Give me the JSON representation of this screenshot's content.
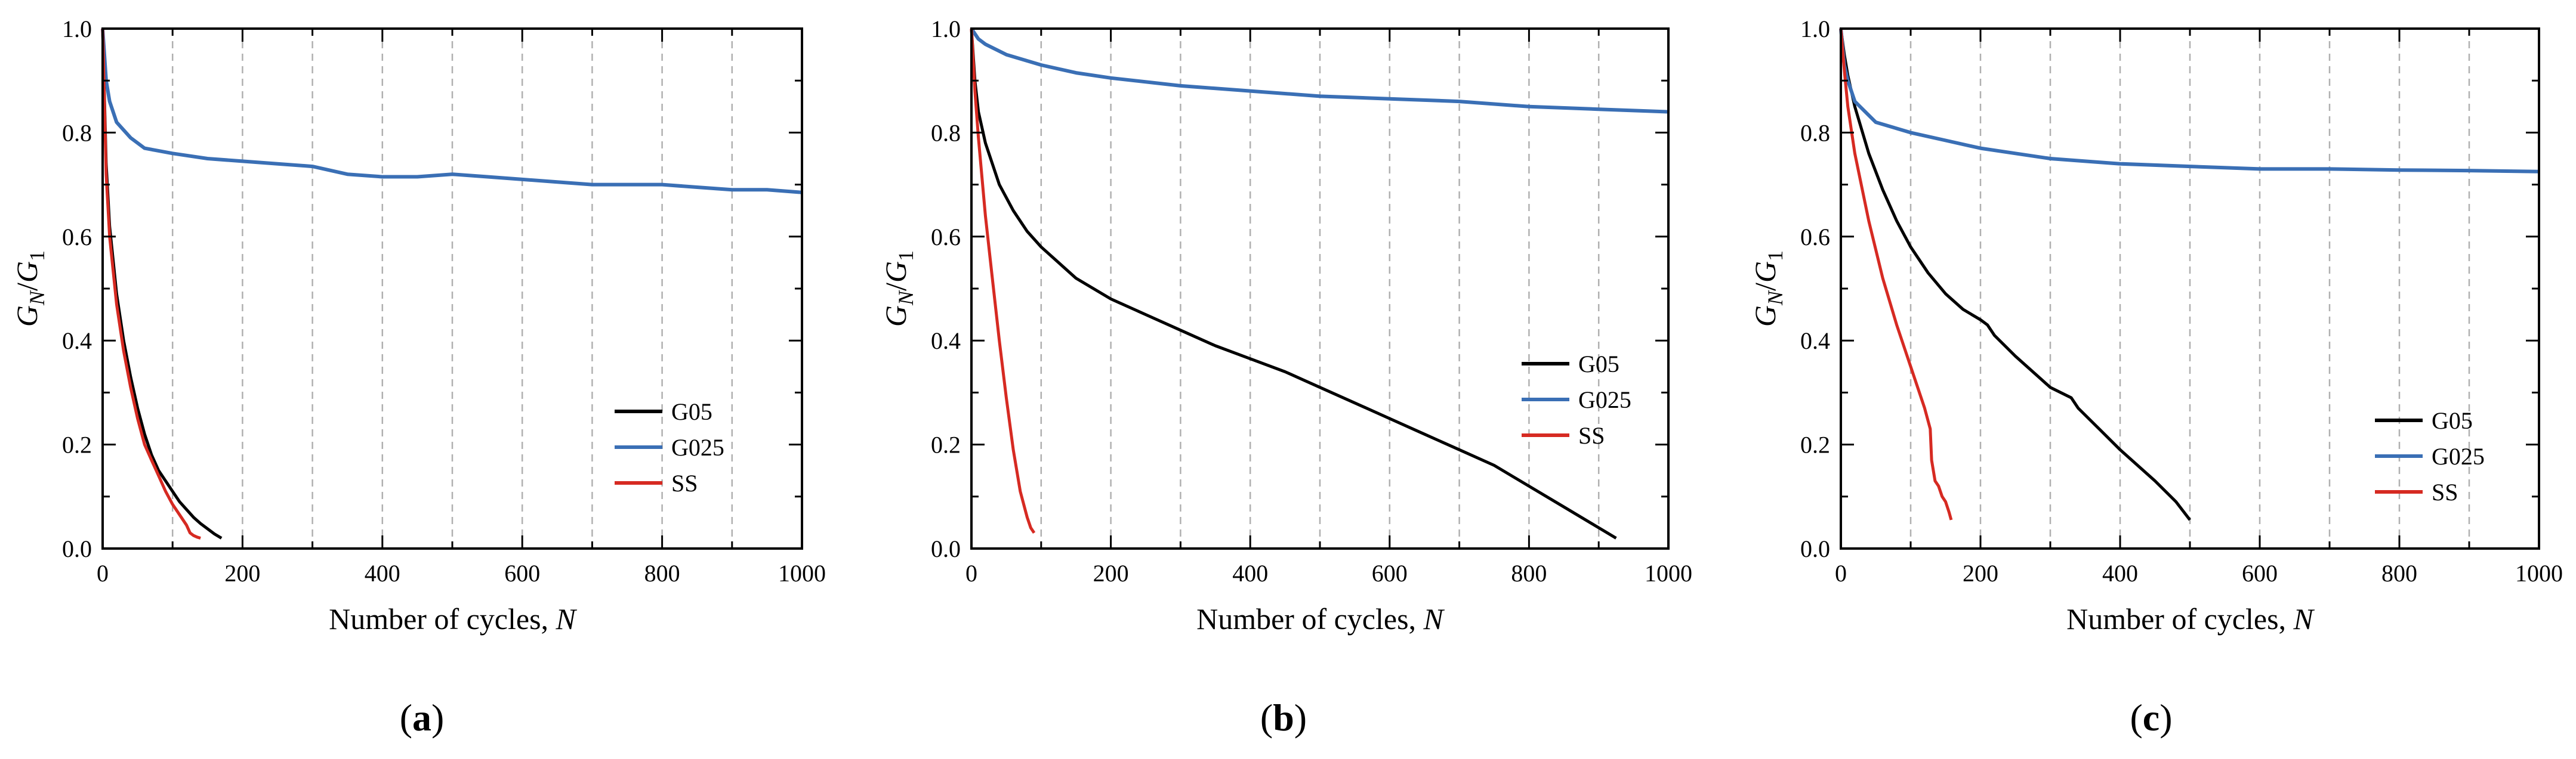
{
  "figure": {
    "colors": {
      "G05": "#000000",
      "G025": "#3a6fb5",
      "SS": "#d62a22",
      "grid": "#b0b0b0"
    }
  },
  "chart_data": [
    {
      "type": "line",
      "panel": "a",
      "xlabel_text": "Number of cycles, ",
      "xlabel_italic": "N",
      "ylabel": "G_N/G_1",
      "xlim": [
        0,
        1000
      ],
      "ylim": [
        0,
        1.0
      ],
      "xticks": [
        0,
        200,
        400,
        600,
        800,
        1000
      ],
      "yticks": [
        0.0,
        0.2,
        0.4,
        0.6,
        0.8,
        1.0
      ],
      "grid": "vertical dashed every 100",
      "legend_position": "lower-right",
      "series": [
        {
          "name": "G05",
          "x": [
            0,
            5,
            10,
            20,
            30,
            40,
            50,
            60,
            70,
            80,
            90,
            100,
            110,
            120,
            130,
            140,
            150,
            160,
            170
          ],
          "y": [
            1.0,
            0.74,
            0.62,
            0.49,
            0.4,
            0.33,
            0.27,
            0.22,
            0.18,
            0.15,
            0.13,
            0.11,
            0.09,
            0.075,
            0.06,
            0.048,
            0.038,
            0.028,
            0.02
          ]
        },
        {
          "name": "G025",
          "x": [
            0,
            5,
            10,
            20,
            40,
            60,
            100,
            150,
            200,
            250,
            300,
            350,
            400,
            450,
            500,
            550,
            600,
            650,
            700,
            750,
            800,
            850,
            900,
            950,
            1000
          ],
          "y": [
            1.0,
            0.9,
            0.86,
            0.82,
            0.79,
            0.77,
            0.76,
            0.75,
            0.745,
            0.74,
            0.735,
            0.72,
            0.715,
            0.715,
            0.72,
            0.715,
            0.71,
            0.705,
            0.7,
            0.7,
            0.7,
            0.695,
            0.69,
            0.69,
            0.685
          ]
        },
        {
          "name": "SS",
          "x": [
            0,
            5,
            10,
            20,
            30,
            40,
            50,
            60,
            70,
            80,
            90,
            100,
            110,
            120,
            125,
            130,
            135,
            140
          ],
          "y": [
            1.0,
            0.72,
            0.6,
            0.47,
            0.38,
            0.31,
            0.25,
            0.2,
            0.17,
            0.14,
            0.11,
            0.085,
            0.065,
            0.045,
            0.03,
            0.025,
            0.022,
            0.02
          ]
        }
      ],
      "label": "a"
    },
    {
      "type": "line",
      "panel": "b",
      "xlabel_text": "Number of cycles, ",
      "xlabel_italic": "N",
      "ylabel": "G_N/G_1",
      "xlim": [
        0,
        1000
      ],
      "ylim": [
        0,
        1.0
      ],
      "xticks": [
        0,
        200,
        400,
        600,
        800,
        1000
      ],
      "yticks": [
        0.0,
        0.2,
        0.4,
        0.6,
        0.8,
        1.0
      ],
      "grid": "vertical dashed every 100",
      "legend_position": "lower-right",
      "series": [
        {
          "name": "G05",
          "x": [
            0,
            5,
            10,
            20,
            40,
            60,
            80,
            100,
            150,
            200,
            250,
            300,
            350,
            400,
            450,
            500,
            550,
            600,
            650,
            700,
            750,
            800,
            850,
            900,
            925
          ],
          "y": [
            1.0,
            0.9,
            0.84,
            0.78,
            0.7,
            0.65,
            0.61,
            0.58,
            0.52,
            0.48,
            0.45,
            0.42,
            0.39,
            0.365,
            0.34,
            0.31,
            0.28,
            0.25,
            0.22,
            0.19,
            0.16,
            0.12,
            0.08,
            0.04,
            0.02
          ]
        },
        {
          "name": "G025",
          "x": [
            0,
            5,
            10,
            20,
            50,
            100,
            150,
            200,
            300,
            400,
            500,
            600,
            700,
            800,
            900,
            1000
          ],
          "y": [
            1.0,
            0.99,
            0.98,
            0.97,
            0.95,
            0.93,
            0.915,
            0.905,
            0.89,
            0.88,
            0.87,
            0.865,
            0.86,
            0.85,
            0.845,
            0.84
          ]
        },
        {
          "name": "SS",
          "x": [
            0,
            5,
            10,
            20,
            30,
            40,
            50,
            60,
            70,
            80,
            85,
            90
          ],
          "y": [
            1.0,
            0.88,
            0.79,
            0.64,
            0.52,
            0.4,
            0.29,
            0.19,
            0.11,
            0.06,
            0.04,
            0.03
          ]
        }
      ],
      "label": "b"
    },
    {
      "type": "line",
      "panel": "c",
      "xlabel_text": "Number of cycles, ",
      "xlabel_italic": "N",
      "ylabel": "G_N/G_1",
      "xlim": [
        0,
        1000
      ],
      "ylim": [
        0,
        1.0
      ],
      "xticks": [
        0,
        200,
        400,
        600,
        800,
        1000
      ],
      "yticks": [
        0.0,
        0.2,
        0.4,
        0.6,
        0.8,
        1.0
      ],
      "grid": "vertical dashed every 100",
      "legend_position": "lower-right",
      "series": [
        {
          "name": "G05",
          "x": [
            0,
            5,
            10,
            20,
            40,
            60,
            80,
            100,
            125,
            150,
            175,
            200,
            210,
            220,
            250,
            300,
            330,
            340,
            370,
            400,
            450,
            480,
            500
          ],
          "y": [
            1.0,
            0.95,
            0.91,
            0.85,
            0.76,
            0.69,
            0.63,
            0.58,
            0.53,
            0.49,
            0.46,
            0.44,
            0.43,
            0.41,
            0.37,
            0.31,
            0.29,
            0.27,
            0.23,
            0.19,
            0.13,
            0.09,
            0.055
          ]
        },
        {
          "name": "G025",
          "x": [
            0,
            5,
            10,
            20,
            50,
            100,
            150,
            200,
            250,
            300,
            350,
            400,
            500,
            600,
            700,
            800,
            900,
            1000
          ],
          "y": [
            1.0,
            0.93,
            0.9,
            0.86,
            0.82,
            0.8,
            0.785,
            0.77,
            0.76,
            0.75,
            0.745,
            0.74,
            0.735,
            0.73,
            0.73,
            0.728,
            0.727,
            0.725
          ]
        },
        {
          "name": "SS",
          "x": [
            0,
            5,
            10,
            20,
            40,
            60,
            80,
            100,
            110,
            120,
            128,
            130,
            135,
            140,
            145,
            150,
            155,
            158
          ],
          "y": [
            1.0,
            0.92,
            0.85,
            0.76,
            0.63,
            0.52,
            0.43,
            0.35,
            0.31,
            0.27,
            0.23,
            0.17,
            0.13,
            0.12,
            0.1,
            0.09,
            0.07,
            0.055
          ]
        }
      ],
      "label": "c"
    }
  ]
}
